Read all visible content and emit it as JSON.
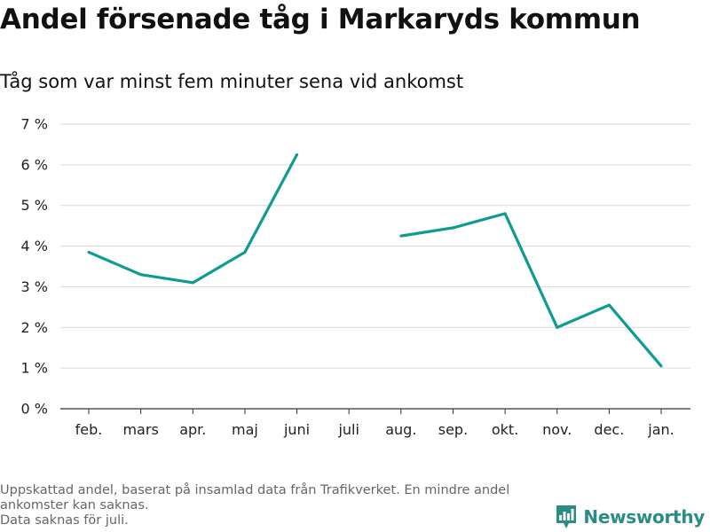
{
  "title": "Andel försenade tåg i Markaryds kommun",
  "subtitle": "Tåg som var minst fem minuter sena vid ankomst",
  "chart_data": {
    "type": "line",
    "categories": [
      "feb.",
      "mars",
      "apr.",
      "maj",
      "juni",
      "juli",
      "aug.",
      "sep.",
      "okt.",
      "nov.",
      "dec.",
      "jan."
    ],
    "series": [
      {
        "values": [
          3.85,
          3.3,
          3.1,
          3.85,
          6.25,
          null,
          4.25,
          4.45,
          4.8,
          2.0,
          2.55,
          1.05
        ]
      }
    ],
    "y_ticks": [
      0,
      1,
      2,
      3,
      4,
      5,
      6,
      7
    ],
    "y_tick_labels": [
      "0 %",
      "1 %",
      "2 %",
      "3 %",
      "4 %",
      "5 %",
      "6 %",
      "7 %"
    ],
    "ylim": [
      0,
      7
    ],
    "grid": "horizontal",
    "line_color": "#0e9c92"
  },
  "footnote": {
    "line1": "Uppskattad andel, baserat på insamlad data från Trafikverket. En mindre andel",
    "line2": "ankomster kan saknas.",
    "line3": "Data saknas för juli."
  },
  "brand": {
    "name": "Newsworthy",
    "icon": "newsworthy-logo-icon",
    "color": "#2a8d83"
  }
}
